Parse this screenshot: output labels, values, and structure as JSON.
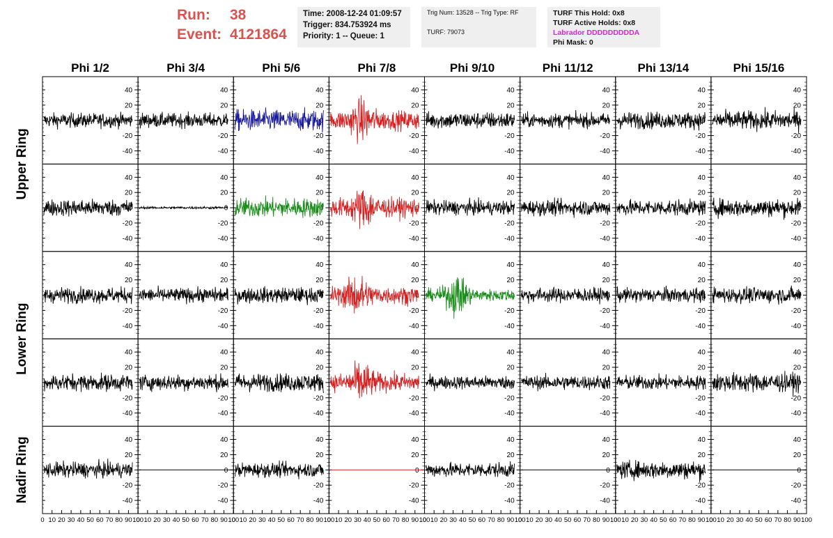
{
  "header": {
    "run_label": "Run:",
    "run_value": "38",
    "event_label": "Event:",
    "event_value": "4121864",
    "time": "Time: 2008-12-24 01:09:57",
    "trigger": "Trigger: 834.753924 ms",
    "priority": "Priority: 1 -- Queue: 1",
    "trig_num": "Trig Num: 13528 -- Trig Type: RF",
    "turf": "TURF: 79073",
    "turf_hold": "TURF This Hold: 0x8",
    "turf_active": "TURF Active Holds: 0x8",
    "labrador": "Labrador DDDDDDDDDA",
    "phi_mask": "Phi Mask: 0"
  },
  "colors": {
    "accent_red": "#d9534f",
    "magenta": "#e020e0",
    "trace_black": "#000000",
    "trace_blue": "#1a1a9c",
    "trace_red": "#d42020",
    "trace_green": "#1a8c1a"
  },
  "chart_data": {
    "type": "line",
    "columns": [
      "Phi 1/2",
      "Phi 3/4",
      "Phi 5/6",
      "Phi 7/8",
      "Phi 9/10",
      "Phi 11/12",
      "Phi 13/14",
      "Phi 15/16"
    ],
    "rows": [
      "Upper Ring",
      "Upper Ring",
      "Lower Ring",
      "Lower Ring",
      "Nadir Ring"
    ],
    "row_labels": [
      {
        "text": "Upper Ring"
      },
      {
        "text": "Lower Ring"
      },
      {
        "text": "Nadir Ring"
      }
    ],
    "xlim": [
      0,
      100
    ],
    "x_ticks": [
      0,
      10,
      20,
      30,
      40,
      50,
      60,
      70,
      80,
      90,
      100
    ],
    "ylim": [
      -50,
      50
    ],
    "y_ticks": [
      -40,
      -20,
      0,
      20,
      40
    ],
    "panels": [
      [
        {
          "color": "black",
          "amp": 12
        },
        {
          "color": "black",
          "amp": 12
        },
        {
          "color": "blue",
          "amp": 18
        },
        {
          "color": "red",
          "amp": 16,
          "burst": 35
        },
        {
          "color": "black",
          "amp": 14
        },
        {
          "color": "black",
          "amp": 12
        },
        {
          "color": "black",
          "amp": 14
        },
        {
          "color": "black",
          "amp": 16
        }
      ],
      [
        {
          "color": "black",
          "amp": 14
        },
        {
          "color": "black",
          "amp": 2
        },
        {
          "color": "green",
          "amp": 16
        },
        {
          "color": "red",
          "amp": 16,
          "burst": 38
        },
        {
          "color": "black",
          "amp": 12
        },
        {
          "color": "black",
          "amp": 13
        },
        {
          "color": "black",
          "amp": 13
        },
        {
          "color": "black",
          "amp": 15
        }
      ],
      [
        {
          "color": "black",
          "amp": 13
        },
        {
          "color": "black",
          "amp": 12
        },
        {
          "color": "black",
          "amp": 13
        },
        {
          "color": "red",
          "amp": 15,
          "burst": 30
        },
        {
          "color": "green",
          "amp": 10,
          "burst": 35
        },
        {
          "color": "black",
          "amp": 12
        },
        {
          "color": "black",
          "amp": 12
        },
        {
          "color": "black",
          "amp": 13
        }
      ],
      [
        {
          "color": "black",
          "amp": 14
        },
        {
          "color": "black",
          "amp": 13
        },
        {
          "color": "black",
          "amp": 15
        },
        {
          "color": "red",
          "amp": 15,
          "burst": 35
        },
        {
          "color": "black",
          "amp": 11
        },
        {
          "color": "black",
          "amp": 12
        },
        {
          "color": "black",
          "amp": 12
        },
        {
          "color": "black",
          "amp": 16
        }
      ],
      [
        {
          "color": "black",
          "amp": 13
        },
        {
          "color": "flat"
        },
        {
          "color": "black",
          "amp": 12
        },
        {
          "color": "flat-red"
        },
        {
          "color": "black",
          "amp": 12
        },
        {
          "color": "flat"
        },
        {
          "color": "black",
          "amp": 15
        },
        {
          "color": "flat"
        }
      ]
    ]
  }
}
